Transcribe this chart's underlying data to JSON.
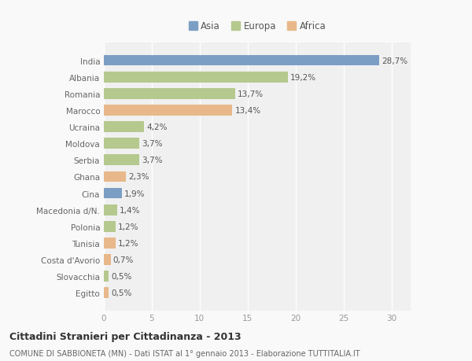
{
  "categories": [
    "India",
    "Albania",
    "Romania",
    "Marocco",
    "Ucraina",
    "Moldova",
    "Serbia",
    "Ghana",
    "Cina",
    "Macedonia d/N.",
    "Polonia",
    "Tunisia",
    "Costa d'Avorio",
    "Slovacchia",
    "Egitto"
  ],
  "values": [
    28.7,
    19.2,
    13.7,
    13.4,
    4.2,
    3.7,
    3.7,
    2.3,
    1.9,
    1.4,
    1.2,
    1.2,
    0.7,
    0.5,
    0.5
  ],
  "labels": [
    "28,7%",
    "19,2%",
    "13,7%",
    "13,4%",
    "4,2%",
    "3,7%",
    "3,7%",
    "2,3%",
    "1,9%",
    "1,4%",
    "1,2%",
    "1,2%",
    "0,7%",
    "0,5%",
    "0,5%"
  ],
  "colors": [
    "#7b9ec5",
    "#b5c98e",
    "#b5c98e",
    "#e8b88a",
    "#b5c98e",
    "#b5c98e",
    "#b5c98e",
    "#e8b88a",
    "#7b9ec5",
    "#b5c98e",
    "#b5c98e",
    "#e8b88a",
    "#e8b88a",
    "#b5c98e",
    "#e8b88a"
  ],
  "continent_labels": [
    "Asia",
    "Europa",
    "Africa"
  ],
  "continent_colors": [
    "#7b9ec5",
    "#b5c98e",
    "#e8b88a"
  ],
  "xlim": [
    0,
    32
  ],
  "xticks": [
    0,
    5,
    10,
    15,
    20,
    25,
    30
  ],
  "title": "Cittadini Stranieri per Cittadinanza - 2013",
  "subtitle": "COMUNE DI SABBIONETA (MN) - Dati ISTAT al 1° gennaio 2013 - Elaborazione TUTTITALIA.IT",
  "background_color": "#f9f9f9",
  "plot_bg_color": "#f0f0f0",
  "bar_height": 0.65,
  "grid_color": "#ffffff",
  "label_fontsize": 7.5,
  "tick_fontsize": 7.5,
  "ylabel_color": "#666666",
  "xlabel_color": "#999999"
}
